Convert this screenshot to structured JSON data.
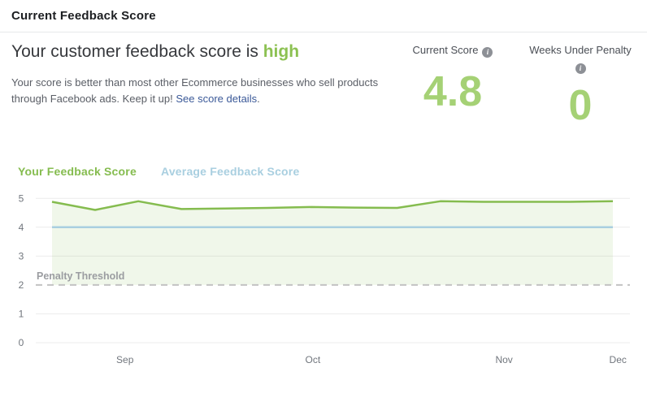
{
  "header": {
    "title": "Current Feedback Score"
  },
  "summary": {
    "heading_prefix": "Your customer feedback score is ",
    "heading_status": "high",
    "body_text": "Your score is better than most other Ecommerce businesses who sell products through Facebook ads. Keep it up! ",
    "link_text": "See score details",
    "body_suffix": "."
  },
  "stats": [
    {
      "label": "Current Score",
      "value": "4.8",
      "info_icon": "i"
    },
    {
      "label": "Weeks Under Penalty",
      "value": "0",
      "info_icon": "i"
    }
  ],
  "colors": {
    "status_green": "#8cc152",
    "score_green": "#a5d175",
    "link_blue": "#3b5998",
    "grid_line": "#ececec",
    "threshold_gray": "#c2c2c2"
  },
  "chart_data": {
    "type": "line",
    "title": "",
    "xlabel": "",
    "ylabel": "",
    "ylim": [
      0,
      5
    ],
    "y_ticks": [
      0,
      1,
      2,
      3,
      4,
      5
    ],
    "grid": true,
    "legend_position": "top-left",
    "x_labels": [
      {
        "text": "Sep",
        "pos": 0.13
      },
      {
        "text": "Oct",
        "pos": 0.465
      },
      {
        "text": "Nov",
        "pos": 0.806
      },
      {
        "text": "Dec",
        "pos": 1.009
      }
    ],
    "series": [
      {
        "name": "Your Feedback Score",
        "color": "#85bc4f",
        "area_fill": true,
        "values": [
          4.88,
          4.6,
          4.9,
          4.63,
          4.65,
          4.67,
          4.7,
          4.68,
          4.67,
          4.9,
          4.88,
          4.88,
          4.88,
          4.9
        ]
      },
      {
        "name": "Average Feedback Score",
        "color": "#a9cfe0",
        "area_fill": false,
        "values": [
          4.0,
          4.0
        ]
      }
    ],
    "threshold": {
      "value": 2,
      "label": "Penalty Threshold"
    }
  }
}
